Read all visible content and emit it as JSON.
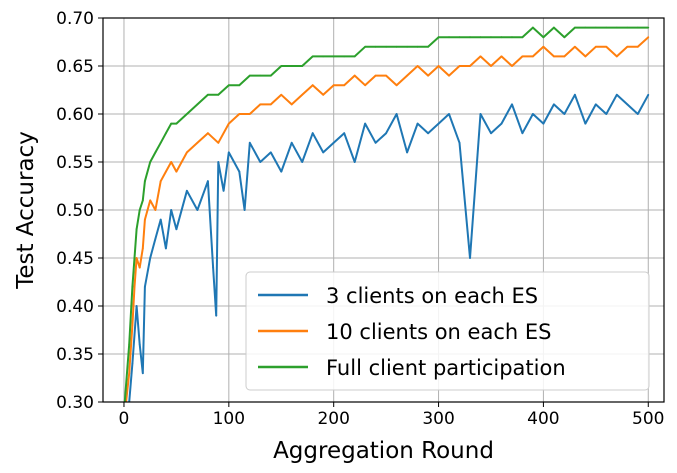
{
  "chart_data": {
    "type": "line",
    "title": "",
    "xlabel": "Aggregation Round",
    "ylabel": "Test Accuracy",
    "xlim": [
      -20,
      515
    ],
    "ylim": [
      0.3,
      0.7
    ],
    "x_ticks": [
      0,
      100,
      200,
      300,
      400,
      500
    ],
    "y_ticks": [
      0.3,
      0.35,
      0.4,
      0.45,
      0.5,
      0.55,
      0.6,
      0.65,
      0.7
    ],
    "x_tick_labels": [
      "0",
      "100",
      "200",
      "300",
      "400",
      "500"
    ],
    "y_tick_labels": [
      "0.30",
      "0.35",
      "0.40",
      "0.45",
      "0.50",
      "0.55",
      "0.60",
      "0.65",
      "0.70"
    ],
    "grid": true,
    "legend_position": "lower-right",
    "series": [
      {
        "name": "3 clients on each ES",
        "color": "#1f77b4",
        "x": [
          0,
          5,
          8,
          10,
          12,
          15,
          18,
          20,
          25,
          30,
          35,
          40,
          45,
          50,
          60,
          70,
          80,
          85,
          88,
          90,
          95,
          100,
          110,
          115,
          120,
          130,
          140,
          150,
          160,
          170,
          180,
          190,
          200,
          210,
          220,
          230,
          240,
          250,
          260,
          270,
          280,
          290,
          300,
          310,
          320,
          330,
          340,
          350,
          360,
          370,
          380,
          390,
          400,
          410,
          420,
          430,
          440,
          450,
          460,
          470,
          480,
          490,
          500
        ],
        "y": [
          0.25,
          0.3,
          0.34,
          0.37,
          0.4,
          0.36,
          0.33,
          0.42,
          0.45,
          0.47,
          0.49,
          0.46,
          0.5,
          0.48,
          0.52,
          0.5,
          0.53,
          0.44,
          0.39,
          0.55,
          0.52,
          0.56,
          0.54,
          0.5,
          0.57,
          0.55,
          0.56,
          0.54,
          0.57,
          0.55,
          0.58,
          0.56,
          0.57,
          0.58,
          0.55,
          0.59,
          0.57,
          0.58,
          0.6,
          0.56,
          0.59,
          0.58,
          0.59,
          0.6,
          0.57,
          0.45,
          0.6,
          0.58,
          0.59,
          0.61,
          0.58,
          0.6,
          0.59,
          0.61,
          0.6,
          0.62,
          0.59,
          0.61,
          0.6,
          0.62,
          0.61,
          0.6,
          0.62
        ]
      },
      {
        "name": "10 clients on each ES",
        "color": "#ff7f0e",
        "x": [
          0,
          5,
          8,
          10,
          12,
          15,
          18,
          20,
          25,
          30,
          35,
          40,
          45,
          50,
          60,
          70,
          80,
          90,
          100,
          110,
          120,
          130,
          140,
          150,
          160,
          170,
          180,
          190,
          200,
          210,
          220,
          230,
          240,
          250,
          260,
          270,
          280,
          290,
          300,
          310,
          320,
          330,
          340,
          350,
          360,
          370,
          380,
          390,
          400,
          410,
          420,
          430,
          440,
          450,
          460,
          470,
          480,
          490,
          500
        ],
        "y": [
          0.28,
          0.33,
          0.38,
          0.42,
          0.45,
          0.44,
          0.46,
          0.49,
          0.51,
          0.5,
          0.53,
          0.54,
          0.55,
          0.54,
          0.56,
          0.57,
          0.58,
          0.57,
          0.59,
          0.6,
          0.6,
          0.61,
          0.61,
          0.62,
          0.61,
          0.62,
          0.63,
          0.62,
          0.63,
          0.63,
          0.64,
          0.63,
          0.64,
          0.64,
          0.63,
          0.64,
          0.65,
          0.64,
          0.65,
          0.64,
          0.65,
          0.65,
          0.66,
          0.65,
          0.66,
          0.65,
          0.66,
          0.66,
          0.67,
          0.66,
          0.66,
          0.67,
          0.66,
          0.67,
          0.67,
          0.66,
          0.67,
          0.67,
          0.68
        ]
      },
      {
        "name": "Full client participation",
        "color": "#2ca02c",
        "x": [
          0,
          5,
          8,
          10,
          12,
          15,
          18,
          20,
          25,
          30,
          35,
          40,
          45,
          50,
          60,
          70,
          80,
          90,
          100,
          110,
          120,
          130,
          140,
          150,
          160,
          170,
          180,
          190,
          200,
          210,
          220,
          230,
          240,
          250,
          260,
          270,
          280,
          290,
          300,
          310,
          320,
          330,
          340,
          350,
          360,
          370,
          380,
          390,
          400,
          410,
          420,
          430,
          440,
          450,
          460,
          470,
          480,
          490,
          500
        ],
        "y": [
          0.29,
          0.36,
          0.42,
          0.45,
          0.48,
          0.5,
          0.51,
          0.53,
          0.55,
          0.56,
          0.57,
          0.58,
          0.59,
          0.59,
          0.6,
          0.61,
          0.62,
          0.62,
          0.63,
          0.63,
          0.64,
          0.64,
          0.64,
          0.65,
          0.65,
          0.65,
          0.66,
          0.66,
          0.66,
          0.66,
          0.66,
          0.67,
          0.67,
          0.67,
          0.67,
          0.67,
          0.67,
          0.67,
          0.68,
          0.68,
          0.68,
          0.68,
          0.68,
          0.68,
          0.68,
          0.68,
          0.68,
          0.69,
          0.68,
          0.69,
          0.68,
          0.69,
          0.69,
          0.69,
          0.69,
          0.69,
          0.69,
          0.69,
          0.69
        ]
      }
    ]
  }
}
